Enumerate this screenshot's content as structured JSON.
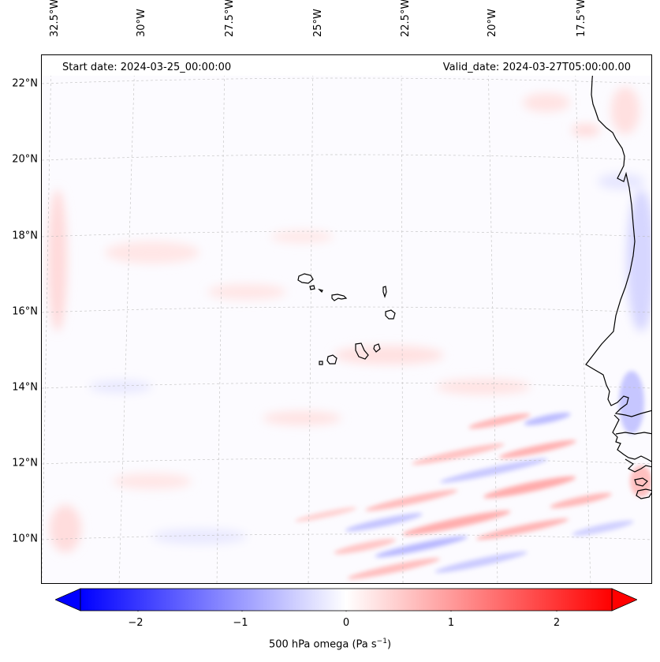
{
  "map": {
    "title_left": "Start date: 2024-03-25_00:00:00",
    "title_right": "Valid_date: 2024-03-27T05:00:00.00",
    "field": "500 hPa omega",
    "lon_labels": [
      "32.5°W",
      "30°W",
      "27.5°W",
      "25°W",
      "22.5°W",
      "20°W",
      "17.5°W"
    ],
    "lat_labels": [
      "22°N",
      "20°N",
      "18°N",
      "16°N",
      "14°N",
      "12°N",
      "10°N"
    ],
    "extent": {
      "lon_min": -32.7,
      "lon_max": -15.8,
      "lat_min": 8.9,
      "lat_max": 22.8
    },
    "coastline_color": "#000000",
    "gridline_color": "#bbbbbb",
    "islands": [
      "Santo Antão",
      "São Vicente",
      "São Nicolau",
      "Sal",
      "Boa Vista",
      "Santiago",
      "Fogo",
      "Brava",
      "Maio"
    ]
  },
  "colorbar": {
    "ticks": [
      "−2",
      "−1",
      "0",
      "1",
      "2"
    ],
    "tick_values": [
      -2,
      -1,
      0,
      1,
      2
    ],
    "range": [
      -2.5,
      2.5
    ],
    "label_main": "500 hPa omega (Pa s",
    "label_exp": "−1",
    "label_close": ")",
    "cmap": "bwr",
    "low_color": "#0000ff",
    "high_color": "#ff0000",
    "extend": "both"
  }
}
